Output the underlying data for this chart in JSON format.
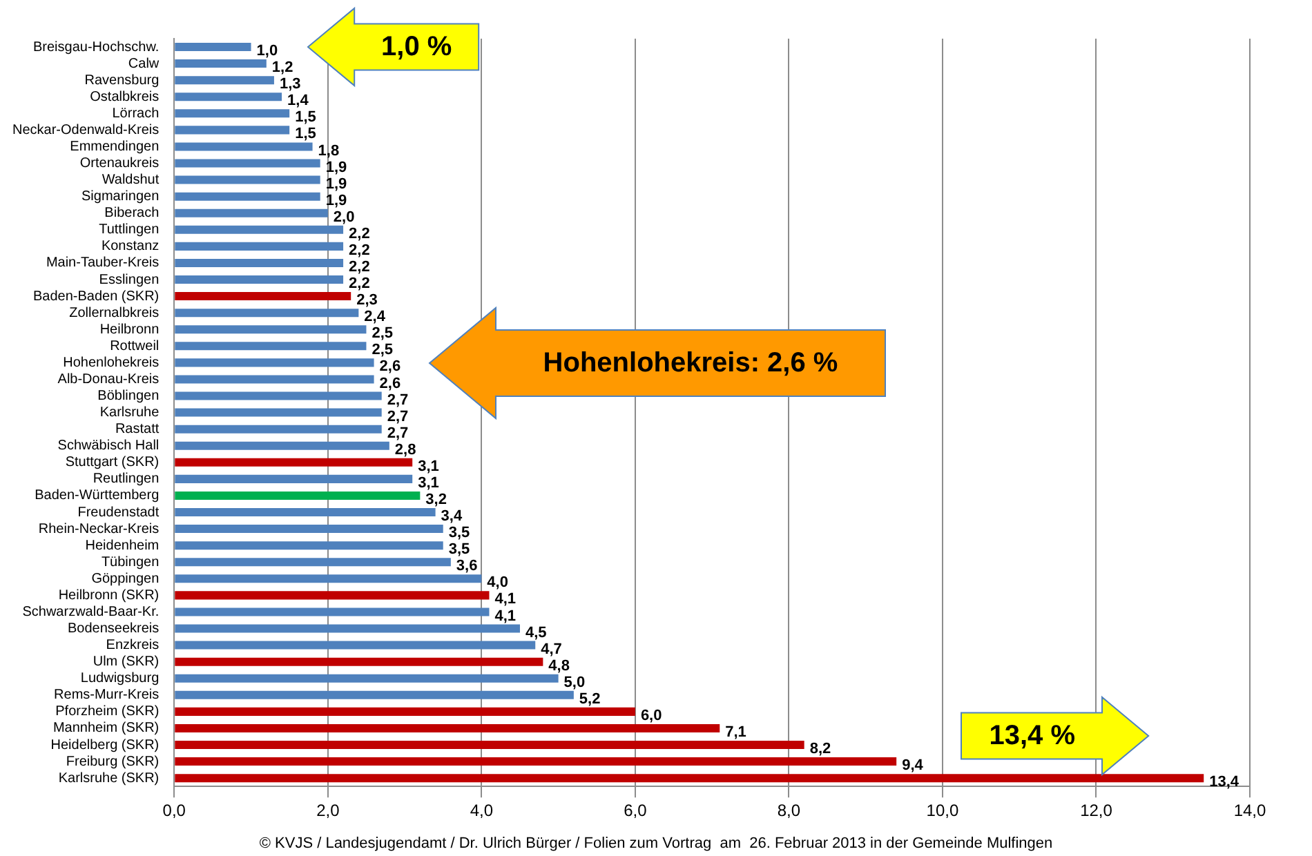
{
  "chart_data": {
    "type": "bar",
    "orientation": "horizontal",
    "categories": [
      "Breisgau-Hochschw.",
      "Calw",
      "Ravensburg",
      "Ostalbkreis",
      "Lörrach",
      "Neckar-Odenwald-Kreis",
      "Emmendingen",
      "Ortenaukreis",
      "Waldshut",
      "Sigmaringen",
      "Biberach",
      "Tuttlingen",
      "Konstanz",
      "Main-Tauber-Kreis",
      "Esslingen",
      "Baden-Baden (SKR)",
      "Zollernalbkreis",
      "Heilbronn",
      "Rottweil",
      "Hohenlohekreis",
      "Alb-Donau-Kreis",
      "Böblingen",
      "Karlsruhe",
      "Rastatt",
      "Schwäbisch Hall",
      "Stuttgart (SKR)",
      "Reutlingen",
      "Baden-Württemberg",
      "Freudenstadt",
      "Rhein-Neckar-Kreis",
      "Heidenheim",
      "Tübingen",
      "Göppingen",
      "Heilbronn (SKR)",
      "Schwarzwald-Baar-Kr.",
      "Bodenseekreis",
      "Enzkreis",
      "Ulm (SKR)",
      "Ludwigsburg",
      "Rems-Murr-Kreis",
      "Pforzheim (SKR)",
      "Mannheim (SKR)",
      "Heidelberg (SKR)",
      "Freiburg (SKR)",
      "Karlsruhe (SKR)"
    ],
    "values": [
      1.0,
      1.2,
      1.3,
      1.4,
      1.5,
      1.5,
      1.8,
      1.9,
      1.9,
      1.9,
      2.0,
      2.2,
      2.2,
      2.2,
      2.2,
      2.3,
      2.4,
      2.5,
      2.5,
      2.6,
      2.6,
      2.7,
      2.7,
      2.7,
      2.8,
      3.1,
      3.1,
      3.2,
      3.4,
      3.5,
      3.5,
      3.6,
      4.0,
      4.1,
      4.1,
      4.5,
      4.7,
      4.8,
      5.0,
      5.2,
      6.0,
      7.1,
      8.2,
      9.4,
      13.4
    ],
    "value_labels": [
      "1,0",
      "1,2",
      "1,3",
      "1,4",
      "1,5",
      "1,5",
      "1,8",
      "1,9",
      "1,9",
      "1,9",
      "2,0",
      "2,2",
      "2,2",
      "2,2",
      "2,2",
      "2,3",
      "2,4",
      "2,5",
      "2,5",
      "2,6",
      "2,6",
      "2,7",
      "2,7",
      "2,7",
      "2,8",
      "3,1",
      "3,1",
      "3,2",
      "3,4",
      "3,5",
      "3,5",
      "3,6",
      "4,0",
      "4,1",
      "4,1",
      "4,5",
      "4,7",
      "4,8",
      "5,0",
      "5,2",
      "6,0",
      "7,1",
      "8,2",
      "9,4",
      "13,4"
    ],
    "colors": [
      "#4f81bd",
      "#4f81bd",
      "#4f81bd",
      "#4f81bd",
      "#4f81bd",
      "#4f81bd",
      "#4f81bd",
      "#4f81bd",
      "#4f81bd",
      "#4f81bd",
      "#4f81bd",
      "#4f81bd",
      "#4f81bd",
      "#4f81bd",
      "#4f81bd",
      "#c00000",
      "#4f81bd",
      "#4f81bd",
      "#4f81bd",
      "#4f81bd",
      "#4f81bd",
      "#4f81bd",
      "#4f81bd",
      "#4f81bd",
      "#4f81bd",
      "#c00000",
      "#4f81bd",
      "#00b050",
      "#4f81bd",
      "#4f81bd",
      "#4f81bd",
      "#4f81bd",
      "#4f81bd",
      "#c00000",
      "#4f81bd",
      "#4f81bd",
      "#4f81bd",
      "#c00000",
      "#4f81bd",
      "#4f81bd",
      "#c00000",
      "#c00000",
      "#c00000",
      "#c00000",
      "#c00000"
    ],
    "xlim": [
      0,
      14
    ],
    "xticks": [
      {
        "value": 0,
        "label": "0,0"
      },
      {
        "value": 2,
        "label": "2,0"
      },
      {
        "value": 4,
        "label": "4,0"
      },
      {
        "value": 6,
        "label": "6,0"
      },
      {
        "value": 8,
        "label": "8,0"
      },
      {
        "value": 10,
        "label": "10,0"
      },
      {
        "value": 12,
        "label": "12,0"
      },
      {
        "value": 14,
        "label": "14,0"
      }
    ],
    "grid": "x",
    "annotations": [
      "1,0 %",
      "Hohenlohekreis: 2,6 %",
      "13,4 %",
      "© KVJS / Landesjugendamt / Dr. Ulrich Bürger / Folien zum Vortrag  am  26. Februar 2013 in der Gemeinde Mulfingen"
    ]
  }
}
